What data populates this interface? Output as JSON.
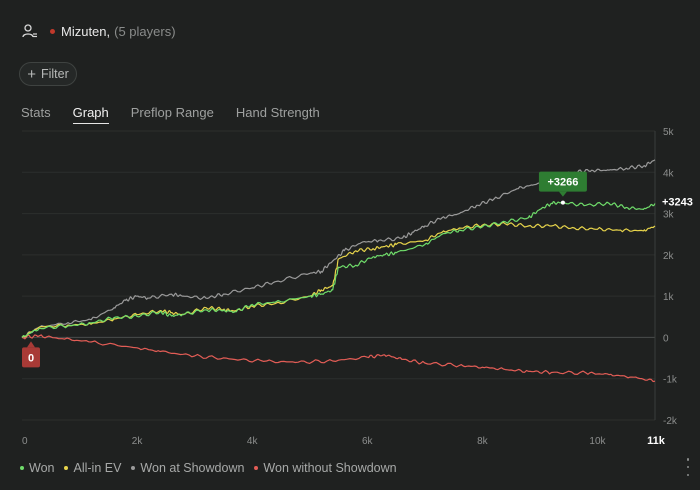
{
  "header": {
    "user_icon": "user-settings-icon",
    "status_color": "#c0392b",
    "player_name": "Mizuten,",
    "players_text": "(5 players)"
  },
  "filter": {
    "icon": "plus-icon",
    "label": "Filter"
  },
  "tabs": [
    {
      "label": "Stats",
      "active": false
    },
    {
      "label": "Graph",
      "active": true
    },
    {
      "label": "Preflop Range",
      "active": false
    },
    {
      "label": "Hand Strength",
      "active": false
    }
  ],
  "chart_data": {
    "type": "line",
    "xlim": [
      0,
      11000
    ],
    "ylim": [
      -2000,
      5000
    ],
    "x_ticks": [
      "0",
      "2k",
      "4k",
      "6k",
      "8k",
      "10k"
    ],
    "x_end_label": "11k",
    "y_ticks": [
      "5k",
      "4k",
      "3k",
      "2k",
      "1k",
      "0",
      "-1k",
      "-2k"
    ],
    "zero_marker": {
      "label": "0",
      "color": "#a83a36"
    },
    "peak_marker": {
      "label": "+3266",
      "x": 9400,
      "y": 3266,
      "color": "#2e7d32"
    },
    "end_label": "+3243",
    "series": [
      {
        "name": "Won",
        "color": "#6fdc6a",
        "points": [
          [
            0,
            0
          ],
          [
            300,
            220
          ],
          [
            800,
            280
          ],
          [
            1200,
            350
          ],
          [
            1600,
            480
          ],
          [
            2000,
            510
          ],
          [
            2400,
            620
          ],
          [
            2600,
            520
          ],
          [
            2800,
            560
          ],
          [
            3200,
            670
          ],
          [
            3500,
            650
          ],
          [
            3700,
            620
          ],
          [
            4000,
            800
          ],
          [
            4400,
            850
          ],
          [
            5000,
            1000
          ],
          [
            5200,
            1050
          ],
          [
            5400,
            1150
          ],
          [
            5500,
            1700
          ],
          [
            5800,
            1750
          ],
          [
            6100,
            1950
          ],
          [
            6300,
            2000
          ],
          [
            6500,
            2050
          ],
          [
            7000,
            2250
          ],
          [
            7300,
            2500
          ],
          [
            7600,
            2600
          ],
          [
            8000,
            2680
          ],
          [
            8400,
            2800
          ],
          [
            8800,
            2900
          ],
          [
            9000,
            3100
          ],
          [
            9200,
            3250
          ],
          [
            9400,
            3266
          ],
          [
            9800,
            3200
          ],
          [
            10200,
            3250
          ],
          [
            10500,
            3150
          ],
          [
            10800,
            3100
          ],
          [
            11000,
            3243
          ]
        ]
      },
      {
        "name": "All-in EV",
        "color": "#e7d44b",
        "points": [
          [
            0,
            0
          ],
          [
            300,
            250
          ],
          [
            800,
            300
          ],
          [
            1200,
            320
          ],
          [
            1600,
            450
          ],
          [
            2000,
            550
          ],
          [
            2400,
            650
          ],
          [
            2600,
            600
          ],
          [
            2800,
            550
          ],
          [
            3200,
            720
          ],
          [
            3500,
            680
          ],
          [
            3700,
            640
          ],
          [
            4000,
            760
          ],
          [
            4400,
            820
          ],
          [
            5000,
            1000
          ],
          [
            5200,
            1150
          ],
          [
            5400,
            1250
          ],
          [
            5500,
            1900
          ],
          [
            5800,
            2100
          ],
          [
            6100,
            2150
          ],
          [
            6300,
            2200
          ],
          [
            6500,
            2250
          ],
          [
            7000,
            2350
          ],
          [
            7300,
            2550
          ],
          [
            7600,
            2650
          ],
          [
            8000,
            2720
          ],
          [
            8400,
            2750
          ],
          [
            8800,
            2700
          ],
          [
            9200,
            2700
          ],
          [
            9600,
            2650
          ],
          [
            10000,
            2620
          ],
          [
            10400,
            2600
          ],
          [
            10800,
            2580
          ],
          [
            11000,
            2700
          ]
        ]
      },
      {
        "name": "Won at Showdown",
        "color": "#9a9a9a",
        "points": [
          [
            0,
            0
          ],
          [
            300,
            250
          ],
          [
            800,
            360
          ],
          [
            1200,
            430
          ],
          [
            1600,
            720
          ],
          [
            1800,
            900
          ],
          [
            2000,
            1000
          ],
          [
            2200,
            950
          ],
          [
            2600,
            1050
          ],
          [
            2800,
            1000
          ],
          [
            3200,
            950
          ],
          [
            3500,
            1050
          ],
          [
            4000,
            1200
          ],
          [
            4400,
            1350
          ],
          [
            5000,
            1550
          ],
          [
            5200,
            1600
          ],
          [
            5400,
            1850
          ],
          [
            5600,
            2100
          ],
          [
            5900,
            2300
          ],
          [
            6200,
            2350
          ],
          [
            6600,
            2400
          ],
          [
            6800,
            2550
          ],
          [
            7000,
            2700
          ],
          [
            7300,
            2900
          ],
          [
            7600,
            3000
          ],
          [
            7900,
            3200
          ],
          [
            8200,
            3350
          ],
          [
            8600,
            3600
          ],
          [
            8900,
            3700
          ],
          [
            9300,
            3900
          ],
          [
            9600,
            4000
          ],
          [
            9900,
            4050
          ],
          [
            10200,
            4050
          ],
          [
            10500,
            4100
          ],
          [
            10800,
            4150
          ],
          [
            11000,
            4300
          ]
        ]
      },
      {
        "name": "Won without Showdown",
        "color": "#e35d56",
        "points": [
          [
            0,
            0
          ],
          [
            300,
            40
          ],
          [
            700,
            -30
          ],
          [
            1200,
            -110
          ],
          [
            2000,
            -250
          ],
          [
            2400,
            -340
          ],
          [
            3000,
            -450
          ],
          [
            3600,
            -520
          ],
          [
            4200,
            -580
          ],
          [
            4800,
            -600
          ],
          [
            5400,
            -570
          ],
          [
            6000,
            -480
          ],
          [
            6300,
            -420
          ],
          [
            6600,
            -530
          ],
          [
            7000,
            -620
          ],
          [
            7600,
            -680
          ],
          [
            8000,
            -720
          ],
          [
            8400,
            -780
          ],
          [
            8800,
            -820
          ],
          [
            9200,
            -850
          ],
          [
            9800,
            -860
          ],
          [
            10200,
            -900
          ],
          [
            10600,
            -960
          ],
          [
            11000,
            -1060
          ]
        ]
      }
    ]
  },
  "legend": [
    {
      "label": "Won",
      "color": "#6fdc6a"
    },
    {
      "label": "All-in EV",
      "color": "#e7d44b"
    },
    {
      "label": "Won at Showdown",
      "color": "#9a9a9a"
    },
    {
      "label": "Won without Showdown",
      "color": "#e35d56"
    }
  ],
  "menu_icon": "more-vertical-icon"
}
